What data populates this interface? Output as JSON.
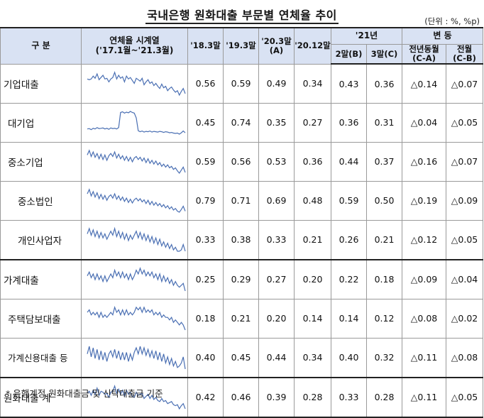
{
  "title": "국내은행 원화대출 부문별 연체율 추이",
  "unit": "(단위 : %, %p)",
  "header": {
    "category": "구 분",
    "series_title": "연체율 시계열",
    "series_range": "('17.1월~'21.3월)",
    "c1": "'18.3말",
    "c2": "'19.3말",
    "c3": "'20.3말",
    "c3_sub": "(A)",
    "c4": "'20.12말",
    "y21": "'21년",
    "y21_feb": "2말(B)",
    "y21_mar": "3말(C)",
    "change": "변 동",
    "yoy": "전년동월",
    "yoy_sub": "(C-A)",
    "mom": "전월",
    "mom_sub": "(C-B)"
  },
  "rows": [
    {
      "label": "기업대출",
      "level": 0,
      "v1": "0.56",
      "v2": "0.59",
      "v3": "0.49",
      "v4": "0.34",
      "feb": "0.43",
      "mar": "0.36",
      "yoy": "△0.14",
      "mom": "△0.07",
      "spark": [
        0.56,
        0.55,
        0.56,
        0.6,
        0.57,
        0.63,
        0.55,
        0.58,
        0.61,
        0.56,
        0.57,
        0.52,
        0.56,
        0.58,
        0.65,
        0.56,
        0.61,
        0.57,
        0.59,
        0.52,
        0.6,
        0.56,
        0.58,
        0.54,
        0.5,
        0.57,
        0.55,
        0.53,
        0.57,
        0.48,
        0.52,
        0.55,
        0.5,
        0.52,
        0.47,
        0.5,
        0.46,
        0.43,
        0.49,
        0.44,
        0.46,
        0.4,
        0.43,
        0.45,
        0.41,
        0.38,
        0.4,
        0.34,
        0.39,
        0.43,
        0.36
      ]
    },
    {
      "label": "대기업",
      "level": 1,
      "v1": "0.45",
      "v2": "0.74",
      "v3": "0.35",
      "v4": "0.27",
      "feb": "0.36",
      "mar": "0.31",
      "yoy": "△0.04",
      "mom": "△0.05",
      "spark": [
        0.42,
        0.43,
        0.4,
        0.44,
        0.42,
        0.46,
        0.43,
        0.44,
        0.45,
        0.42,
        0.44,
        0.41,
        0.45,
        0.43,
        0.44,
        0.42,
        0.46,
        0.9,
        0.92,
        0.88,
        0.91,
        0.89,
        0.93,
        0.9,
        0.88,
        0.74,
        0.37,
        0.34,
        0.36,
        0.33,
        0.35,
        0.34,
        0.36,
        0.33,
        0.35,
        0.34,
        0.33,
        0.35,
        0.34,
        0.32,
        0.34,
        0.33,
        0.31,
        0.32,
        0.3,
        0.29,
        0.3,
        0.27,
        0.31,
        0.36,
        0.31
      ]
    },
    {
      "label": "중소기업",
      "level": 1,
      "v1": "0.59",
      "v2": "0.56",
      "v3": "0.53",
      "v4": "0.36",
      "feb": "0.44",
      "mar": "0.37",
      "yoy": "△0.16",
      "mom": "△0.07",
      "spark": [
        0.6,
        0.66,
        0.58,
        0.64,
        0.57,
        0.62,
        0.55,
        0.61,
        0.54,
        0.6,
        0.53,
        0.59,
        0.62,
        0.58,
        0.64,
        0.56,
        0.61,
        0.55,
        0.59,
        0.53,
        0.58,
        0.52,
        0.57,
        0.51,
        0.56,
        0.58,
        0.54,
        0.57,
        0.52,
        0.56,
        0.5,
        0.55,
        0.49,
        0.53,
        0.48,
        0.52,
        0.47,
        0.5,
        0.45,
        0.48,
        0.44,
        0.47,
        0.43,
        0.45,
        0.41,
        0.43,
        0.39,
        0.36,
        0.4,
        0.44,
        0.37
      ]
    },
    {
      "label": "중소법인",
      "level": 2,
      "v1": "0.79",
      "v2": "0.71",
      "v3": "0.69",
      "v4": "0.48",
      "feb": "0.59",
      "mar": "0.50",
      "yoy": "△0.19",
      "mom": "△0.09",
      "spark": [
        0.82,
        0.9,
        0.78,
        0.86,
        0.76,
        0.84,
        0.73,
        0.81,
        0.72,
        0.79,
        0.7,
        0.77,
        0.8,
        0.74,
        0.82,
        0.72,
        0.78,
        0.7,
        0.76,
        0.68,
        0.74,
        0.66,
        0.72,
        0.65,
        0.71,
        0.74,
        0.69,
        0.73,
        0.67,
        0.71,
        0.64,
        0.7,
        0.62,
        0.68,
        0.61,
        0.66,
        0.6,
        0.64,
        0.58,
        0.62,
        0.56,
        0.6,
        0.54,
        0.58,
        0.52,
        0.55,
        0.5,
        0.48,
        0.53,
        0.59,
        0.5
      ]
    },
    {
      "label": "개인사업자",
      "level": 2,
      "v1": "0.33",
      "v2": "0.38",
      "v3": "0.33",
      "v4": "0.21",
      "feb": "0.26",
      "mar": "0.21",
      "yoy": "△0.12",
      "mom": "△0.05",
      "spark": [
        0.34,
        0.38,
        0.33,
        0.37,
        0.32,
        0.36,
        0.31,
        0.35,
        0.31,
        0.34,
        0.3,
        0.33,
        0.36,
        0.33,
        0.38,
        0.32,
        0.36,
        0.31,
        0.35,
        0.3,
        0.34,
        0.29,
        0.33,
        0.3,
        0.33,
        0.36,
        0.31,
        0.35,
        0.3,
        0.34,
        0.29,
        0.33,
        0.28,
        0.32,
        0.27,
        0.31,
        0.26,
        0.3,
        0.25,
        0.28,
        0.24,
        0.27,
        0.23,
        0.26,
        0.22,
        0.24,
        0.21,
        0.21,
        0.22,
        0.26,
        0.21
      ]
    },
    {
      "label": "가계대출",
      "level": 0,
      "v1": "0.25",
      "v2": "0.29",
      "v3": "0.27",
      "v4": "0.20",
      "feb": "0.22",
      "mar": "0.18",
      "yoy": "△0.09",
      "mom": "△0.04",
      "spark": [
        0.26,
        0.28,
        0.25,
        0.27,
        0.24,
        0.27,
        0.24,
        0.26,
        0.23,
        0.26,
        0.23,
        0.25,
        0.27,
        0.25,
        0.29,
        0.26,
        0.28,
        0.25,
        0.28,
        0.25,
        0.27,
        0.24,
        0.27,
        0.24,
        0.26,
        0.29,
        0.27,
        0.3,
        0.27,
        0.29,
        0.26,
        0.28,
        0.26,
        0.28,
        0.25,
        0.27,
        0.24,
        0.27,
        0.23,
        0.26,
        0.23,
        0.25,
        0.22,
        0.24,
        0.21,
        0.23,
        0.21,
        0.2,
        0.21,
        0.22,
        0.18
      ]
    },
    {
      "label": "주택담보대출",
      "level": 1,
      "v1": "0.18",
      "v2": "0.21",
      "v3": "0.20",
      "v4": "0.14",
      "feb": "0.14",
      "mar": "0.12",
      "yoy": "△0.08",
      "mom": "△0.02",
      "spark": [
        0.19,
        0.2,
        0.18,
        0.19,
        0.18,
        0.19,
        0.17,
        0.19,
        0.17,
        0.18,
        0.17,
        0.18,
        0.19,
        0.18,
        0.21,
        0.19,
        0.2,
        0.18,
        0.2,
        0.18,
        0.2,
        0.18,
        0.19,
        0.18,
        0.19,
        0.21,
        0.2,
        0.21,
        0.19,
        0.21,
        0.19,
        0.2,
        0.19,
        0.2,
        0.18,
        0.19,
        0.18,
        0.19,
        0.17,
        0.18,
        0.17,
        0.17,
        0.16,
        0.17,
        0.15,
        0.16,
        0.15,
        0.14,
        0.15,
        0.14,
        0.12
      ]
    },
    {
      "label": "가계신용대출 등",
      "level": 1,
      "v1": "0.40",
      "v2": "0.45",
      "v3": "0.44",
      "v4": "0.34",
      "feb": "0.40",
      "mar": "0.32",
      "yoy": "△0.11",
      "mom": "△0.08",
      "spark": [
        0.42,
        0.47,
        0.4,
        0.46,
        0.39,
        0.45,
        0.38,
        0.44,
        0.38,
        0.43,
        0.37,
        0.42,
        0.44,
        0.4,
        0.45,
        0.39,
        0.44,
        0.38,
        0.43,
        0.38,
        0.43,
        0.37,
        0.42,
        0.38,
        0.43,
        0.46,
        0.42,
        0.47,
        0.42,
        0.46,
        0.41,
        0.45,
        0.4,
        0.44,
        0.39,
        0.44,
        0.38,
        0.43,
        0.37,
        0.42,
        0.36,
        0.4,
        0.35,
        0.39,
        0.34,
        0.37,
        0.33,
        0.34,
        0.36,
        0.4,
        0.32
      ]
    },
    {
      "label": "원화대출 계",
      "level": 0,
      "v1": "0.42",
      "v2": "0.46",
      "v3": "0.39",
      "v4": "0.28",
      "feb": "0.33",
      "mar": "0.28",
      "yoy": "△0.11",
      "mom": "△0.05",
      "spark": [
        0.43,
        0.45,
        0.41,
        0.46,
        0.42,
        0.48,
        0.41,
        0.45,
        0.44,
        0.42,
        0.43,
        0.39,
        0.44,
        0.45,
        0.5,
        0.43,
        0.47,
        0.42,
        0.46,
        0.4,
        0.46,
        0.42,
        0.44,
        0.4,
        0.39,
        0.44,
        0.41,
        0.42,
        0.43,
        0.38,
        0.4,
        0.42,
        0.38,
        0.41,
        0.37,
        0.39,
        0.36,
        0.35,
        0.38,
        0.35,
        0.36,
        0.33,
        0.34,
        0.35,
        0.32,
        0.31,
        0.32,
        0.28,
        0.31,
        0.33,
        0.28
      ]
    }
  ],
  "spark_color": "#4a6fb3",
  "footnote": "* 은행계정 원화대출금 및 신탁대출금 기준"
}
